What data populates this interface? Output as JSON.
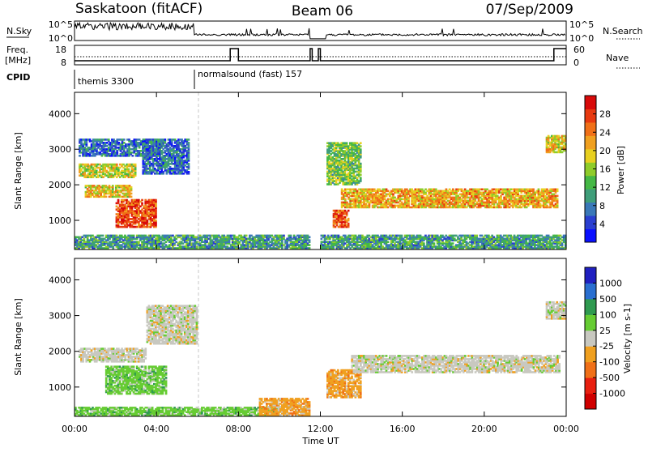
{
  "header": {
    "station": "Saskatoon (fitACF)",
    "beam": "Beam 06",
    "date": "07/Sep/2009"
  },
  "side_labels": {
    "nsky": "N.Sky",
    "freq_line1": "Freq.",
    "freq_line2": "[MHz]",
    "cpid": "CPID",
    "nsearch": "N.Search",
    "nave": "Nave"
  },
  "nsky_axis": {
    "top": "10^5",
    "bottom": "10^0"
  },
  "freq_axis": {
    "left_top": "18",
    "left_bottom": "8",
    "right_top": "60",
    "right_bottom": "0"
  },
  "cpid": [
    {
      "label": "themis 3300",
      "start_hour": 0
    },
    {
      "label": "normalsound (fast) 157",
      "start_hour": 6.05
    }
  ],
  "chart_data": [
    {
      "type": "heatmap",
      "name": "power",
      "ylabel": "Slant Range [km]",
      "xlabel": "",
      "xlim": [
        "00:00",
        "24:00"
      ],
      "ylim": [
        180,
        4600
      ],
      "yticks": [
        1000,
        2000,
        3000,
        4000
      ],
      "colorbar": {
        "label": "Power [dB]",
        "range": [
          0,
          32
        ],
        "ticks": [
          "4",
          "8",
          "12",
          "16",
          "20",
          "24",
          "28"
        ],
        "colors": [
          "#0a10ff",
          "#2a3fd0",
          "#3a78b8",
          "#3f9e7a",
          "#45b845",
          "#8fcc2a",
          "#e8d020",
          "#f0a020",
          "#f07018",
          "#e83a10",
          "#d80a0a"
        ]
      },
      "data_gap_hours": [
        11.55,
        12.0
      ],
      "bands": [
        {
          "t0": 0.2,
          "t1": 4.2,
          "r0": 2800,
          "r1": 3300,
          "level": 6
        },
        {
          "t0": 0.2,
          "t1": 3.0,
          "r0": 2200,
          "r1": 2600,
          "level": 18
        },
        {
          "t0": 0.5,
          "t1": 2.8,
          "r0": 1650,
          "r1": 2000,
          "level": 20
        },
        {
          "t0": 2.0,
          "t1": 4.0,
          "r0": 800,
          "r1": 1600,
          "level": 28
        },
        {
          "t0": 3.3,
          "t1": 5.6,
          "r0": 2300,
          "r1": 3300,
          "level": 6
        },
        {
          "t0": 0.0,
          "t1": 11.5,
          "r0": 200,
          "r1": 600,
          "level": 10
        },
        {
          "t0": 12.0,
          "t1": 24.0,
          "r0": 200,
          "r1": 600,
          "level": 10
        },
        {
          "t0": 12.6,
          "t1": 13.4,
          "r0": 800,
          "r1": 1300,
          "level": 28
        },
        {
          "t0": 13.0,
          "t1": 23.6,
          "r0": 1350,
          "r1": 1900,
          "level": 22
        },
        {
          "t0": 12.3,
          "t1": 14.0,
          "r0": 2000,
          "r1": 3200,
          "level": 14
        },
        {
          "t0": 23.0,
          "t1": 24.0,
          "r0": 2900,
          "r1": 3400,
          "level": 20
        }
      ]
    },
    {
      "type": "heatmap",
      "name": "velocity",
      "ylabel": "Slant Range [km]",
      "xlabel": "Time UT",
      "xlim": [
        "00:00",
        "24:00"
      ],
      "ylim": [
        180,
        4600
      ],
      "yticks": [
        1000,
        2000,
        3000,
        4000
      ],
      "xticks": [
        "00:00",
        "04:00",
        "08:00",
        "12:00",
        "16:00",
        "20:00",
        "00:00"
      ],
      "colorbar": {
        "label": "Velocity [m s-1]",
        "ticks": [
          "1000",
          "500",
          "100",
          "25",
          "-25",
          "-100",
          "-500",
          "-1000"
        ],
        "colors": [
          "#2020c0",
          "#2a6fd0",
          "#2f9a50",
          "#66cc33",
          "#c8c8c0",
          "#f0a020",
          "#f07018",
          "#e82010",
          "#d00000"
        ]
      },
      "data_gap_hours": [
        11.55,
        12.0
      ],
      "bands": [
        {
          "t0": 0.2,
          "t1": 3.5,
          "r0": 1700,
          "r1": 2100,
          "level": 0
        },
        {
          "t0": 1.5,
          "t1": 4.5,
          "r0": 800,
          "r1": 1600,
          "level": 60
        },
        {
          "t0": 3.5,
          "t1": 6.0,
          "r0": 2200,
          "r1": 3300,
          "level": 0
        },
        {
          "t0": 0.0,
          "t1": 10.0,
          "r0": 200,
          "r1": 450,
          "level": 60
        },
        {
          "t0": 9.0,
          "t1": 11.5,
          "r0": 200,
          "r1": 700,
          "level": -100
        },
        {
          "t0": 12.3,
          "t1": 14.0,
          "r0": 700,
          "r1": 1500,
          "level": -100
        },
        {
          "t0": 13.5,
          "t1": 23.7,
          "r0": 1400,
          "r1": 1900,
          "level": 0
        },
        {
          "t0": 23.0,
          "t1": 24.0,
          "r0": 2900,
          "r1": 3400,
          "level": 0
        }
      ]
    }
  ]
}
